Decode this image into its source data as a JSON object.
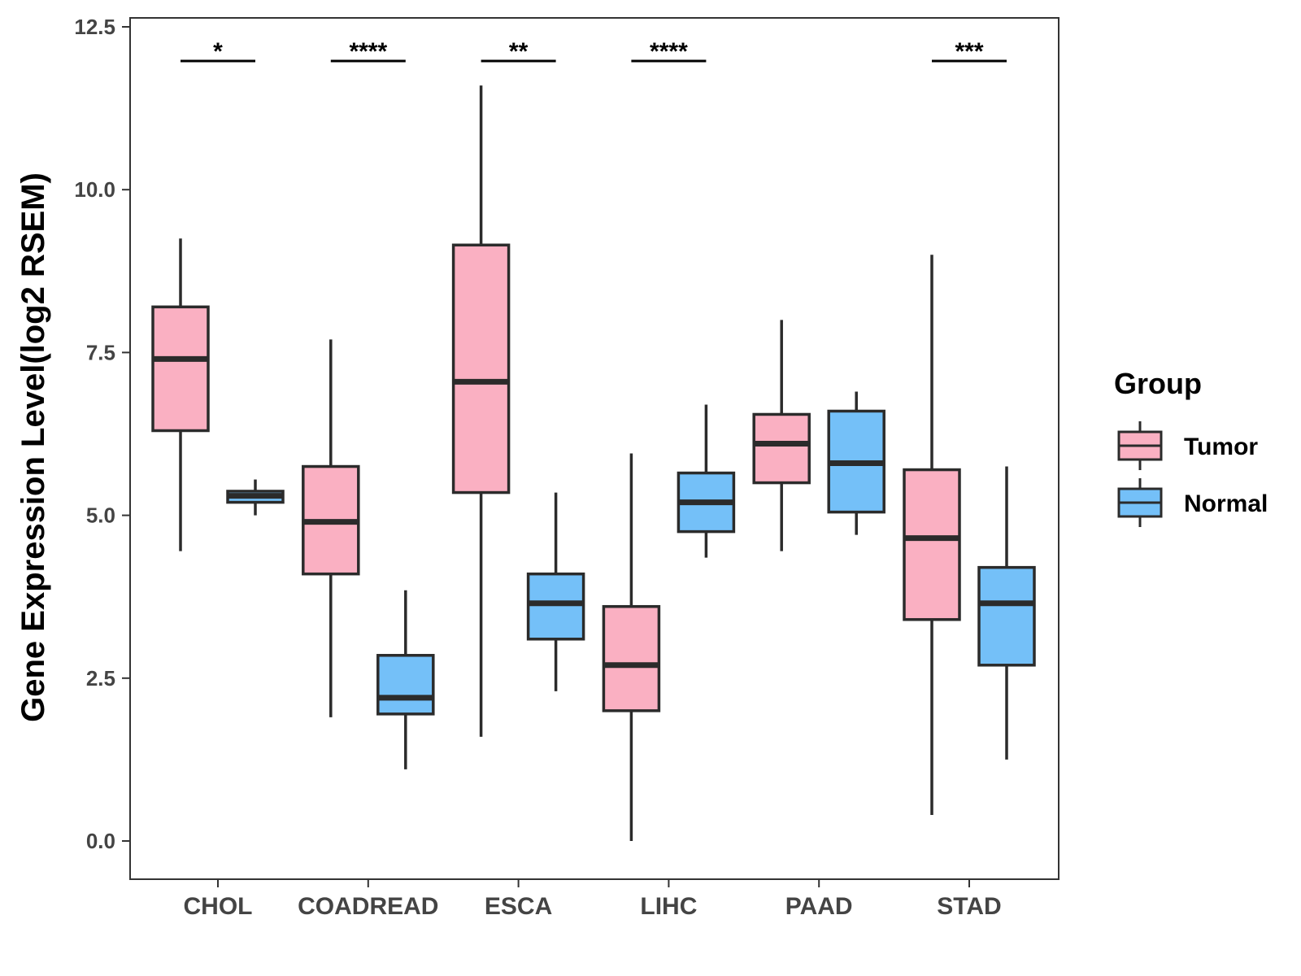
{
  "chart_data": {
    "type": "boxplot",
    "title": "",
    "xlabel": "",
    "ylabel": "Gene Expression Level(log2 RSEM)",
    "ylim": [
      -0.6,
      12.6
    ],
    "y_ticks": [
      "0.0",
      "2.5",
      "5.0",
      "7.5",
      "10.0",
      "12.5"
    ],
    "y_tick_values": [
      0,
      2.5,
      5,
      7.5,
      10,
      12.5
    ],
    "grid": false,
    "categories": [
      "CHOL",
      "COADREAD",
      "ESCA",
      "LIHC",
      "PAAD",
      "STAD"
    ],
    "significance": [
      "*",
      "****",
      "**",
      "****",
      "",
      "***"
    ],
    "legend": {
      "title": "Group",
      "position": "right"
    },
    "series": [
      {
        "name": "Tumor",
        "color": "#FAB0C2",
        "boxes": [
          {
            "category": "CHOL",
            "whisker_low": 4.45,
            "q1": 6.3,
            "median": 7.4,
            "q3": 8.2,
            "whisker_high": 9.25
          },
          {
            "category": "COADREAD",
            "whisker_low": 1.9,
            "q1": 4.1,
            "median": 4.9,
            "q3": 5.75,
            "whisker_high": 7.7
          },
          {
            "category": "ESCA",
            "whisker_low": 1.6,
            "q1": 5.35,
            "median": 7.05,
            "q3": 9.15,
            "whisker_high": 11.6
          },
          {
            "category": "LIHC",
            "whisker_low": 0.0,
            "q1": 2.0,
            "median": 2.7,
            "q3": 3.6,
            "whisker_high": 5.95
          },
          {
            "category": "PAAD",
            "whisker_low": 4.45,
            "q1": 5.5,
            "median": 6.1,
            "q3": 6.55,
            "whisker_high": 8.0
          },
          {
            "category": "STAD",
            "whisker_low": 0.4,
            "q1": 3.4,
            "median": 4.65,
            "q3": 5.7,
            "whisker_high": 9.0
          }
        ]
      },
      {
        "name": "Normal",
        "color": "#74C0F8",
        "boxes": [
          {
            "category": "CHOL",
            "whisker_low": 5.0,
            "q1": 5.2,
            "median": 5.3,
            "q3": 5.37,
            "whisker_high": 5.55
          },
          {
            "category": "COADREAD",
            "whisker_low": 1.1,
            "q1": 1.95,
            "median": 2.2,
            "q3": 2.85,
            "whisker_high": 3.85
          },
          {
            "category": "ESCA",
            "whisker_low": 2.3,
            "q1": 3.1,
            "median": 3.65,
            "q3": 4.1,
            "whisker_high": 5.35
          },
          {
            "category": "LIHC",
            "whisker_low": 4.35,
            "q1": 4.75,
            "median": 5.2,
            "q3": 5.65,
            "whisker_high": 6.7
          },
          {
            "category": "PAAD",
            "whisker_low": 4.7,
            "q1": 5.05,
            "median": 5.8,
            "q3": 6.6,
            "whisker_high": 6.9
          },
          {
            "category": "STAD",
            "whisker_low": 1.25,
            "q1": 2.7,
            "median": 3.65,
            "q3": 4.2,
            "whisker_high": 5.75
          }
        ]
      }
    ]
  }
}
